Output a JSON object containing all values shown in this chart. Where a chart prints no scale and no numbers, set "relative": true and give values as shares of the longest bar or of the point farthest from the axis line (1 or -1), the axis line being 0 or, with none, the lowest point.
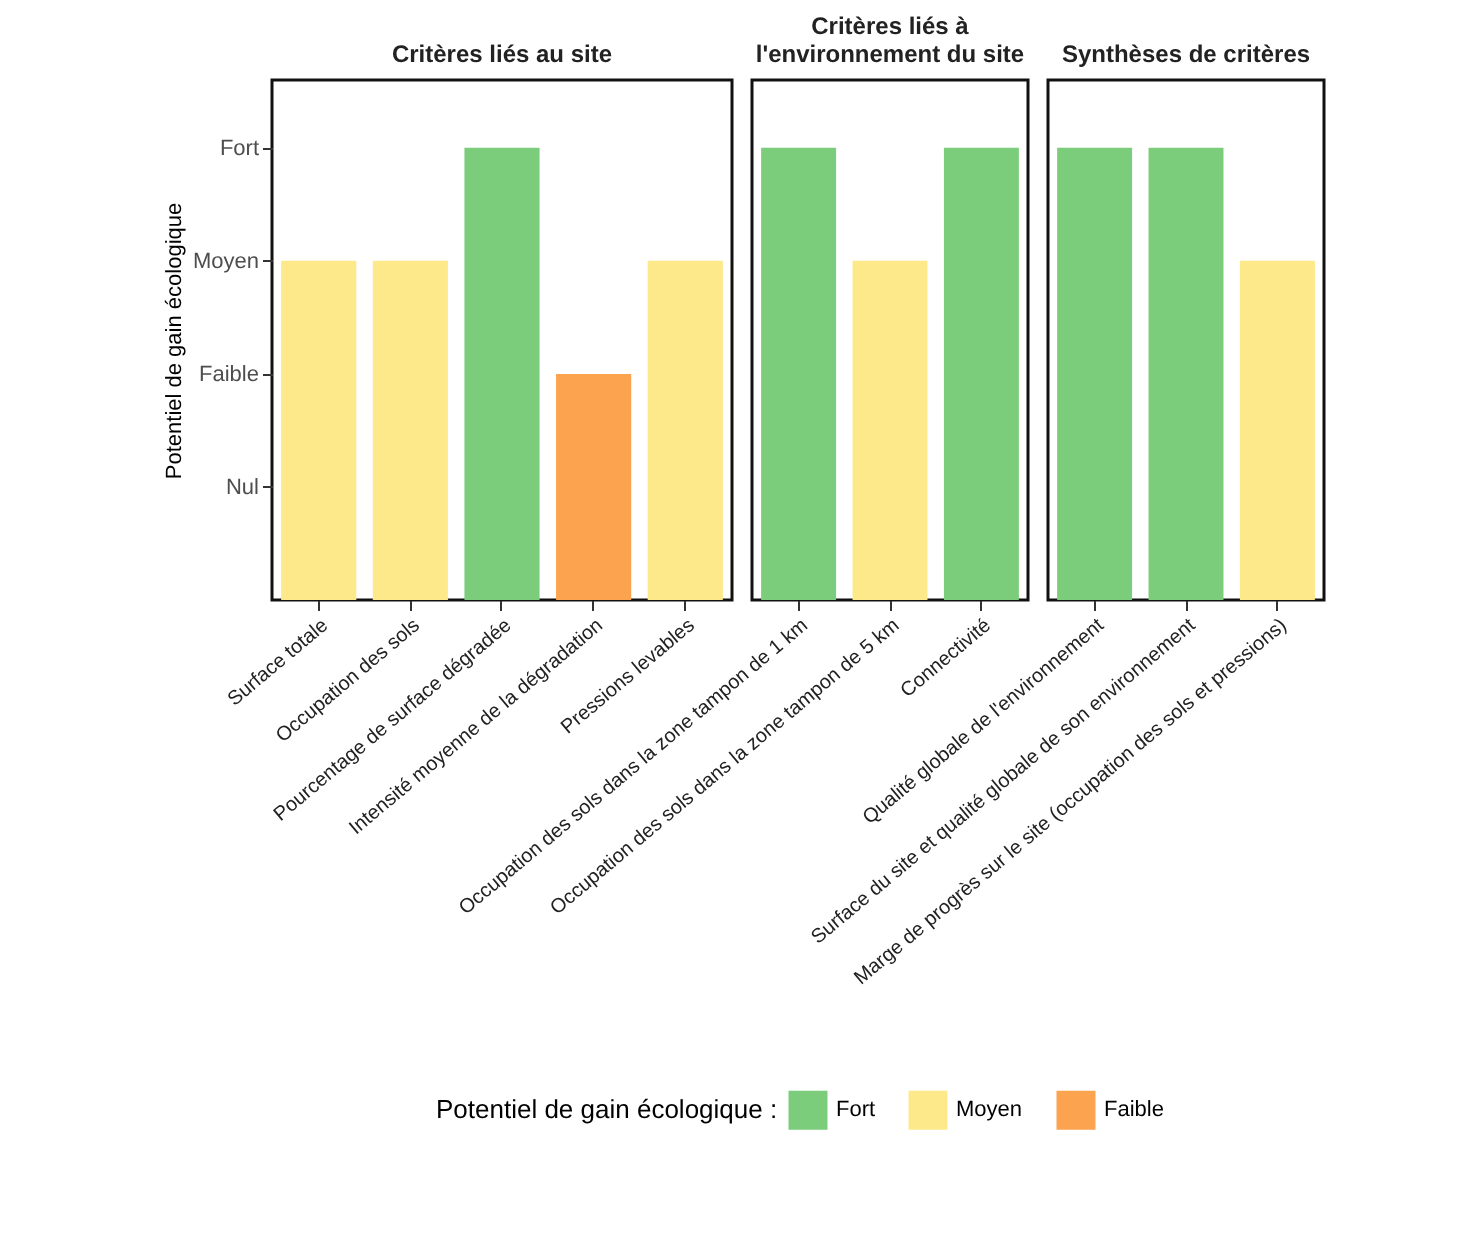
{
  "chart_data": [
    {
      "type": "bar",
      "title": "Critères liés au site",
      "ylabel": "Potentiel de gain écologique",
      "relative": true,
      "y_categories": [
        "Fort",
        "Moyen",
        "Faible",
        "Nul"
      ],
      "categories": [
        "Surface totale",
        "Occupation des sols",
        "Pourcentage de surface dégradée",
        "Intensité moyenne de la dégradation",
        "Pressions levables"
      ],
      "series": [
        {
          "name": "Fort",
          "color": "#7bcd7b",
          "values": [
            null,
            null,
            1,
            null,
            null
          ]
        },
        {
          "name": "Moyen",
          "color": "#fde98a",
          "values": [
            0.75,
            0.75,
            null,
            null,
            0.75
          ]
        },
        {
          "name": "Faible",
          "color": "#fba34e",
          "values": [
            null,
            null,
            null,
            0.5,
            null
          ]
        }
      ],
      "grid": false,
      "legend": "bottom",
      "legend_title": "Potentiel de gain écologique :"
    },
    {
      "type": "bar",
      "title": "Critères liés à l'environnement du site",
      "relative": true,
      "categories": [
        "Occupation des sols dans la zone tampon de 1 km",
        "Occupation des sols dans la zone tampon de 5 km",
        "Connectivité"
      ],
      "series": [
        {
          "color": "#7bcd7b",
          "values": [
            1,
            null,
            1
          ]
        },
        {
          "color": "#fde98a",
          "values": [
            null,
            0.75,
            null
          ]
        }
      ],
      "grid": false
    },
    {
      "type": "bar",
      "title": "Synthèses de critères",
      "relative": true,
      "categories": [
        "Qualité globale de l'environnement",
        "Surface du site et qualité globale de son environnement",
        "Marge de progrès sur le site (occupation des sols et pressions)"
      ],
      "series": [
        {
          "color": "#7bcd7b",
          "values": [
            1,
            1,
            null
          ]
        },
        {
          "color": "#fde98a",
          "values": [
            null,
            null,
            0.75
          ]
        }
      ],
      "grid": false
    }
  ]
}
